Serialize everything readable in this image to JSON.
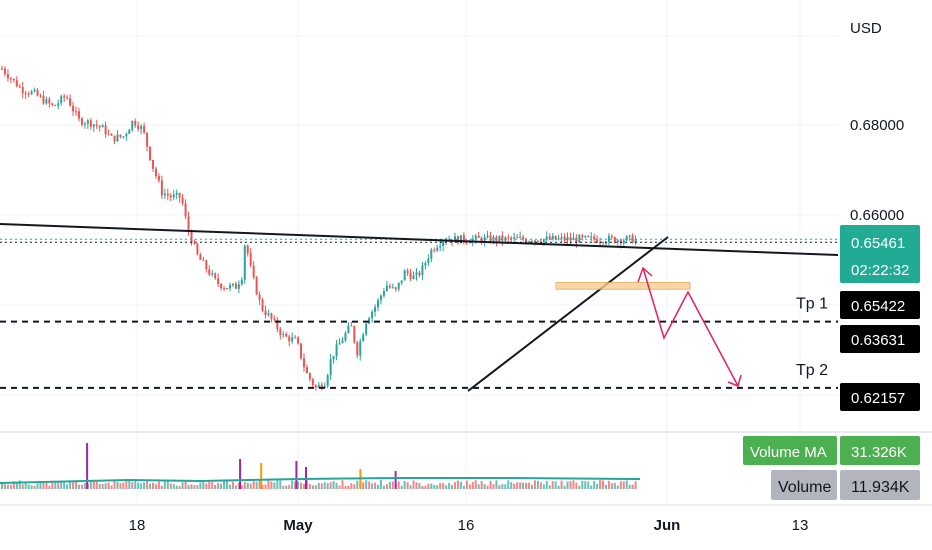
{
  "chart_data": {
    "type": "candlestick",
    "currency": "USD",
    "y_ticks": [
      0.68,
      0.66
    ],
    "y_tick_labels": [
      "0.68000",
      "0.66000"
    ],
    "x_ticks": [
      "18",
      "May",
      "16",
      "Jun",
      "13"
    ],
    "colors": {
      "up": "#26a69a",
      "down": "#ef5350",
      "accent": "#22ab94",
      "annotation": "#e91e63",
      "zone": "#f7cc90"
    },
    "current_price": {
      "value": 0.65461,
      "label": "0.65461",
      "countdown": "02:22:32"
    },
    "levels": [
      {
        "name": "Tp 1",
        "value": 0.63631,
        "label": "0.63631"
      },
      {
        "name": "Tp 2",
        "value": 0.62157,
        "label": "0.62157"
      }
    ],
    "neckline_price": {
      "value": 0.65422,
      "label": "0.65422"
    },
    "zone": {
      "from": 0.6435,
      "to": 0.645
    },
    "price_path": [
      [
        0,
        0.6925
      ],
      [
        0.03,
        0.688
      ],
      [
        0.05,
        0.687
      ],
      [
        0.08,
        0.684
      ],
      [
        0.1,
        0.6865
      ],
      [
        0.12,
        0.681
      ],
      [
        0.14,
        0.6805
      ],
      [
        0.16,
        0.679
      ],
      [
        0.17,
        0.677
      ],
      [
        0.19,
        0.6775
      ],
      [
        0.205,
        0.681
      ],
      [
        0.22,
        0.679
      ],
      [
        0.235,
        0.671
      ],
      [
        0.25,
        0.665
      ],
      [
        0.265,
        0.664
      ],
      [
        0.28,
        0.664
      ],
      [
        0.29,
        0.657
      ],
      [
        0.305,
        0.651
      ],
      [
        0.32,
        0.648
      ],
      [
        0.335,
        0.645
      ],
      [
        0.35,
        0.644
      ],
      [
        0.365,
        0.644
      ],
      [
        0.375,
        0.6465
      ],
      [
        0.38,
        0.6545
      ],
      [
        0.39,
        0.647
      ],
      [
        0.405,
        0.6395
      ],
      [
        0.42,
        0.637
      ],
      [
        0.44,
        0.633
      ],
      [
        0.46,
        0.632
      ],
      [
        0.475,
        0.625
      ],
      [
        0.49,
        0.6215
      ],
      [
        0.505,
        0.623
      ],
      [
        0.515,
        0.6285
      ],
      [
        0.53,
        0.632
      ],
      [
        0.545,
        0.6355
      ],
      [
        0.555,
        0.6295
      ],
      [
        0.57,
        0.637
      ],
      [
        0.585,
        0.64
      ],
      [
        0.6,
        0.6445
      ],
      [
        0.615,
        0.643
      ],
      [
        0.63,
        0.6475
      ],
      [
        0.645,
        0.646
      ],
      [
        0.655,
        0.6475
      ],
      [
        0.67,
        0.652
      ],
      [
        0.68,
        0.6535
      ],
      [
        0.69,
        0.6546
      ]
    ],
    "volume": {
      "ma_label": "Volume MA",
      "ma_value": "31.326K",
      "label": "Volume",
      "value": "11.934K",
      "spikes": [
        {
          "t": 0.133,
          "v": 1.0,
          "color": "#9c27b0"
        },
        {
          "t": 0.372,
          "v": 0.6,
          "color": "#9c27b0"
        },
        {
          "t": 0.405,
          "v": 0.5,
          "color": "#ff9800"
        },
        {
          "t": 0.46,
          "v": 0.55,
          "color": "#9c27b0"
        },
        {
          "t": 0.475,
          "v": 0.4,
          "color": "#9c27b0"
        },
        {
          "t": 0.56,
          "v": 0.35,
          "color": "#ff9800"
        },
        {
          "t": 0.615,
          "v": 0.3,
          "color": "#9c27b0"
        }
      ]
    }
  }
}
